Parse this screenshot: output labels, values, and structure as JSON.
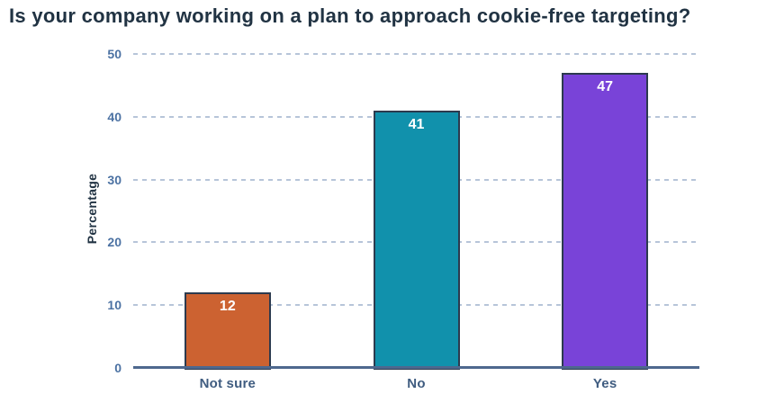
{
  "title": "Is your company working on a plan to approach cookie-free targeting?",
  "chart_data": {
    "type": "bar",
    "title": "Is your company working on a plan to approach cookie-free targeting?",
    "categories": [
      "Not sure",
      "No",
      "Yes"
    ],
    "values": [
      12,
      41,
      47
    ],
    "value_labels": [
      "12",
      "41",
      "47"
    ],
    "xlabel": "",
    "ylabel": "Percentage",
    "ylim": [
      0,
      50
    ],
    "yticks": [
      0,
      10,
      20,
      30,
      40,
      50
    ],
    "grid": "horizontal-dashed",
    "legend_position": "none",
    "colors": {
      "bar_fill": [
        "#CC6231",
        "#1191AC",
        "#7943D8"
      ],
      "bar_border": "#2C3A4E",
      "axis_line": "#4E688E",
      "gridline": "#B7C5D9",
      "ytick_label": "#4C72A3",
      "xtick_label": "#3F5C80",
      "title": "#213343",
      "ylabel": "#213343",
      "value_label": "#FFFFFF",
      "background": "#FFFFFF"
    }
  }
}
